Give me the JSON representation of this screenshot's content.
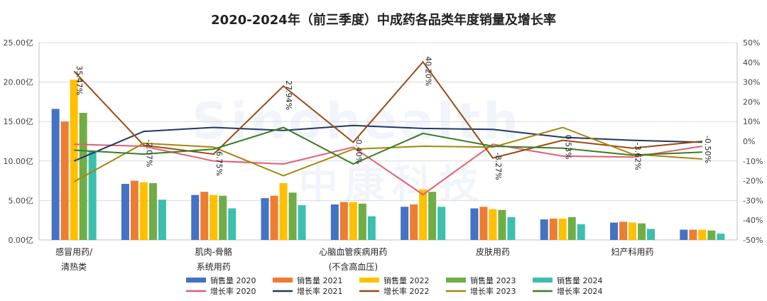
{
  "chart_data": {
    "type": "bar",
    "title": "2020-2024年（前三季度）中成药各品类年度销量及增长率",
    "categories": [
      [
        "感冒用药/",
        "清热类"
      ],
      [
        ""
      ],
      [
        "肌肉-骨骼",
        "系统用药"
      ],
      [
        ""
      ],
      [
        "心脑血管疾病用药",
        "(不含高血压)"
      ],
      [
        ""
      ],
      [
        "皮肤用药"
      ],
      [
        ""
      ],
      [
        "妇产科用药"
      ],
      [
        ""
      ]
    ],
    "y_left": {
      "min": 0,
      "max": 25,
      "step": 5,
      "tick_labels": [
        "0.00亿",
        "5.00亿",
        "10.00亿",
        "15.00亿",
        "20.00亿",
        "25.00亿"
      ]
    },
    "y_right": {
      "min": -50,
      "max": 50,
      "step": 10,
      "tick_labels": [
        "-50%",
        "-40%",
        "-30%",
        "-20%",
        "-10%",
        "0%",
        "10%",
        "20%",
        "30%",
        "40%",
        "50%"
      ]
    },
    "bar_series": [
      {
        "name": "销售量 2020",
        "color": "#4472C4",
        "values": [
          16.6,
          7.1,
          5.7,
          5.3,
          4.5,
          4.2,
          4.0,
          2.6,
          2.2,
          1.3
        ]
      },
      {
        "name": "销售量 2021",
        "color": "#ED7D31",
        "values": [
          15.0,
          7.5,
          6.1,
          5.6,
          4.8,
          4.5,
          4.2,
          2.7,
          2.3,
          1.3
        ]
      },
      {
        "name": "销售量 2022",
        "color": "#FFC000",
        "values": [
          20.3,
          7.3,
          5.7,
          7.2,
          4.8,
          6.4,
          3.9,
          2.7,
          2.2,
          1.3
        ]
      },
      {
        "name": "销售量 2023",
        "color": "#70AD47",
        "values": [
          16.1,
          7.2,
          5.6,
          6.0,
          4.6,
          6.1,
          3.8,
          2.9,
          2.1,
          1.2
        ]
      },
      {
        "name": "销售量 2024",
        "color": "#3CBFAE",
        "values": [
          11.2,
          5.1,
          4.0,
          4.4,
          3.0,
          4.2,
          2.9,
          2.0,
          1.4,
          0.8
        ]
      }
    ],
    "line_series": [
      {
        "name": "增长率 2020",
        "color": "#E15F73",
        "values": [
          -1.5,
          -2.5,
          -10.0,
          -11.5,
          -3.0,
          -27.0,
          -1.5,
          -7.5,
          -8.0,
          -2.5
        ]
      },
      {
        "name": "增长率 2021",
        "color": "#203864",
        "values": [
          -10.0,
          5.0,
          7.0,
          5.5,
          8.0,
          6.5,
          6.0,
          2.0,
          0.5,
          -0.5
        ]
      },
      {
        "name": "增长率 2022",
        "color": "#9C4A12",
        "values": [
          35.5,
          -2.0,
          -6.5,
          28.0,
          -0.5,
          40.2,
          -8.5,
          0.5,
          -3.5,
          0.0
        ]
      },
      {
        "name": "增长率 2023",
        "color": "#A6860D",
        "values": [
          -20.5,
          -1.0,
          -3.0,
          -17.5,
          -4.0,
          -2.5,
          -3.0,
          7.0,
          -6.5,
          -9.0
        ]
      },
      {
        "name": "增长率 2024",
        "color": "#3A7D23",
        "values": [
          -4.5,
          -6.5,
          -4.0,
          7.0,
          -11.5,
          4.0,
          -2.5,
          -3.5,
          -7.0,
          -5.5
        ]
      }
    ],
    "annotations": [
      "35.47%",
      "-2.07%",
      "-6.75%",
      "27.94%",
      "-0.40%",
      "40.20%",
      "-8.27%",
      "0.53%",
      "-3.62%",
      "-0.50%"
    ],
    "legend_position": "bottom",
    "grid": "horizontal"
  },
  "watermark": {
    "latin": "Sinohealth",
    "chinese": "中康科技"
  }
}
